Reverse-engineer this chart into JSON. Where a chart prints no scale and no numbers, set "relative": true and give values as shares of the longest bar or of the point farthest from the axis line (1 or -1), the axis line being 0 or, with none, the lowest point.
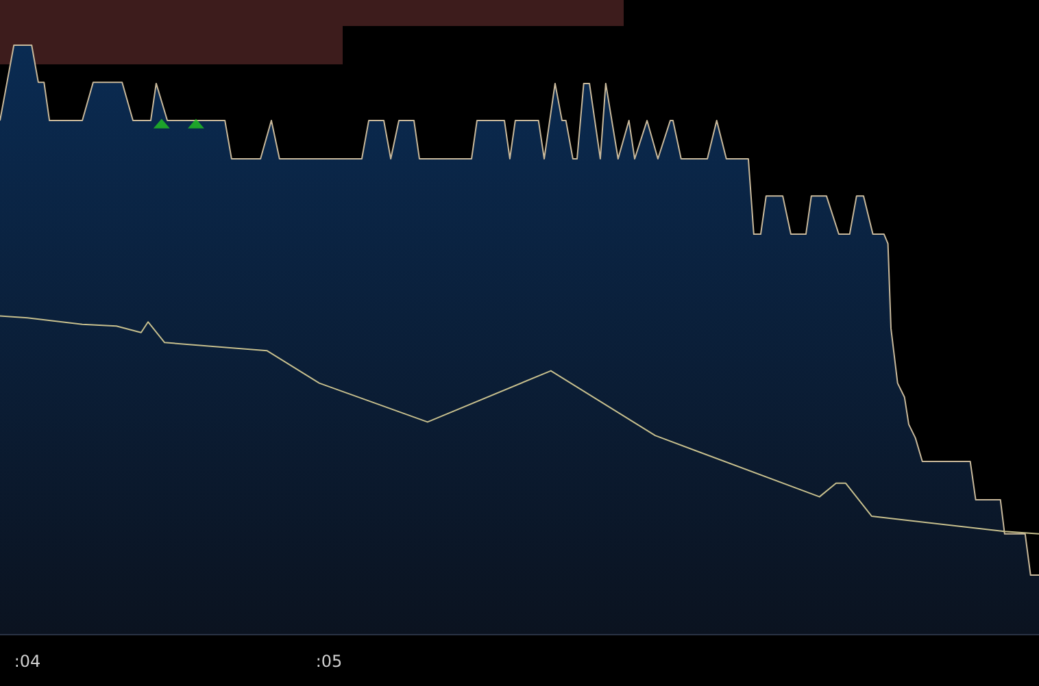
{
  "chart_data": {
    "type": "area",
    "relative": true,
    "xlim": [
      3.909,
      7.355
    ],
    "xticks": [
      {
        "value": 4,
        "label": ":04"
      },
      {
        "value": 5,
        "label": ":05"
      }
    ],
    "series": [
      {
        "color": "#0a2b52",
        "x": [
          3.909,
          3.955,
          4.014,
          4.036,
          4.055,
          4.073,
          4.182,
          4.218,
          4.314,
          4.35,
          4.409,
          4.427,
          4.464,
          4.655,
          4.677,
          4.773,
          4.809,
          4.836,
          5.109,
          5.132,
          5.182,
          5.205,
          5.232,
          5.282,
          5.3,
          5.473,
          5.491,
          5.582,
          5.6,
          5.618,
          5.695,
          5.714,
          5.75,
          5.773,
          5.786,
          5.809,
          5.823,
          5.845,
          5.864,
          5.9,
          5.918,
          5.959,
          5.995,
          6.014,
          6.055,
          6.091,
          6.132,
          6.141,
          6.168,
          6.255,
          6.286,
          6.318,
          6.391,
          6.409,
          6.432,
          6.45,
          6.505,
          6.532,
          6.582,
          6.6,
          6.65,
          6.691,
          6.727,
          6.75,
          6.773,
          6.804,
          6.841,
          6.854,
          6.864,
          6.886,
          6.909,
          6.923,
          6.945,
          6.968,
          7.127,
          7.145,
          7.227,
          7.241,
          7.309,
          7.327,
          7.355
        ],
        "values": [
          0.872,
          1,
          1,
          0.937,
          0.937,
          0.872,
          0.872,
          0.937,
          0.937,
          0.872,
          0.872,
          0.935,
          0.872,
          0.872,
          0.807,
          0.807,
          0.872,
          0.807,
          0.807,
          0.872,
          0.872,
          0.807,
          0.872,
          0.872,
          0.807,
          0.807,
          0.872,
          0.872,
          0.807,
          0.872,
          0.872,
          0.807,
          0.935,
          0.872,
          0.872,
          0.807,
          0.807,
          0.935,
          0.935,
          0.807,
          0.935,
          0.807,
          0.872,
          0.807,
          0.872,
          0.807,
          0.872,
          0.872,
          0.807,
          0.807,
          0.872,
          0.807,
          0.807,
          0.679,
          0.679,
          0.744,
          0.744,
          0.679,
          0.679,
          0.744,
          0.744,
          0.679,
          0.679,
          0.744,
          0.744,
          0.679,
          0.679,
          0.663,
          0.519,
          0.426,
          0.402,
          0.356,
          0.333,
          0.293,
          0.293,
          0.228,
          0.228,
          0.17,
          0.17,
          0.1,
          0.1
        ]
      },
      {
        "type": "line",
        "color": "#c8c08e",
        "x": [
          3.909,
          4,
          4.182,
          4.295,
          4.377,
          4.4,
          4.455,
          4.795,
          4.968,
          5.327,
          5.736,
          6.082,
          6.627,
          6.682,
          6.714,
          6.8,
          7.241,
          7.355
        ],
        "values": [
          0.54,
          0.537,
          0.526,
          0.523,
          0.512,
          0.53,
          0.495,
          0.481,
          0.426,
          0.36,
          0.447,
          0.337,
          0.233,
          0.256,
          0.256,
          0.2,
          0.174,
          0.17
        ]
      },
      {
        "type": "scatter",
        "marker": "triangle",
        "color": "#22c322",
        "x": [
          4.445,
          4.559
        ],
        "values": [
          0.867,
          0.867
        ]
      }
    ]
  }
}
